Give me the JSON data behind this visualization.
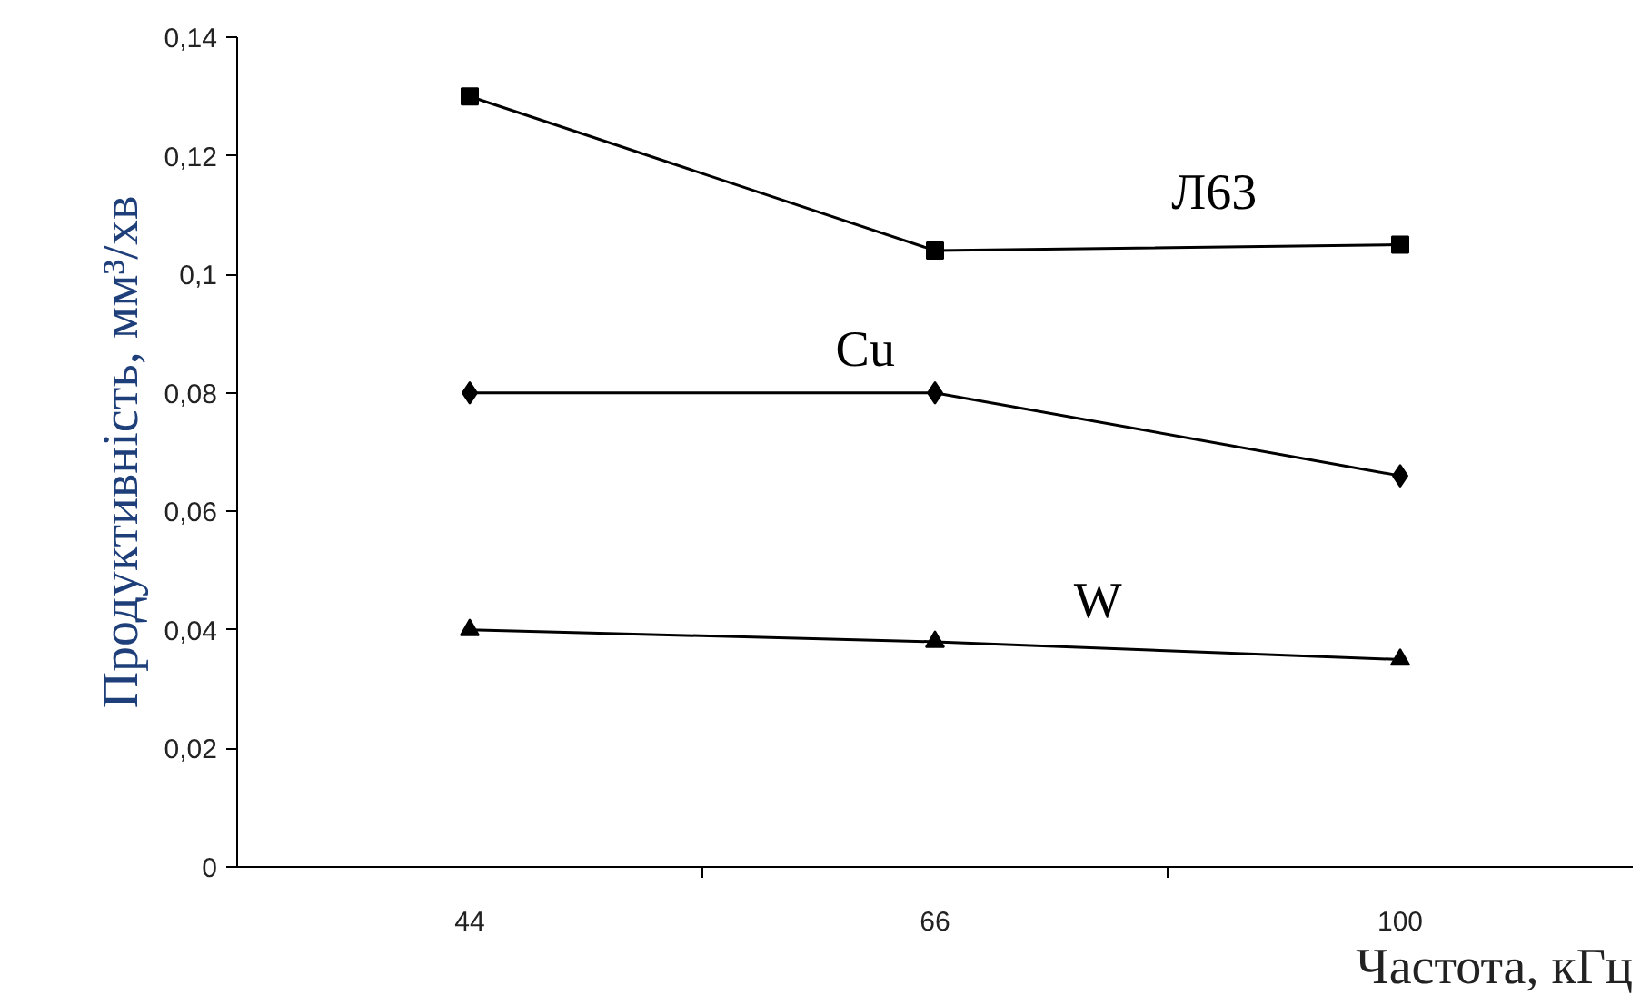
{
  "chart_data": {
    "type": "line",
    "xlabel": "Частота, кГц",
    "ylabel": "Продуктивність, мм³/хв",
    "categories": [
      "44",
      "66",
      "100"
    ],
    "series": [
      {
        "name": "Л63",
        "color": "#000000",
        "marker": "square",
        "values": [
          0.13,
          0.104,
          0.105
        ]
      },
      {
        "name": "Cu",
        "color": "#000000",
        "marker": "diamond",
        "values": [
          0.08,
          0.08,
          0.066
        ]
      },
      {
        "name": "W",
        "color": "#000000",
        "marker": "triangle",
        "values": [
          0.04,
          0.038,
          0.035
        ]
      }
    ],
    "ylim": [
      0,
      0.14
    ],
    "yticks": [
      {
        "value": 0,
        "label": "0"
      },
      {
        "value": 0.02,
        "label": "0,02"
      },
      {
        "value": 0.04,
        "label": "0,04"
      },
      {
        "value": 0.06,
        "label": "0,06"
      },
      {
        "value": 0.08,
        "label": "0,08"
      },
      {
        "value": 0.1,
        "label": "0,1"
      },
      {
        "value": 0.12,
        "label": "0,12"
      },
      {
        "value": 0.14,
        "label": "0,14"
      }
    ],
    "grid": false,
    "line_style": "solid"
  }
}
